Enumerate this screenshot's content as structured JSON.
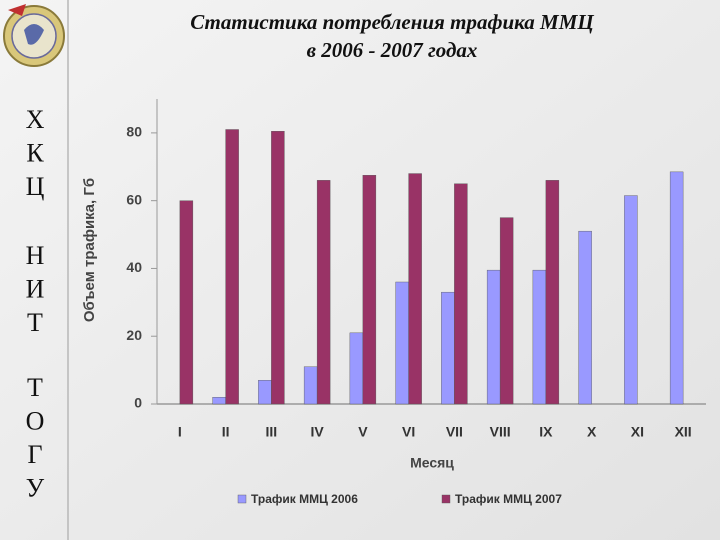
{
  "sidebar": [
    [
      "Х",
      "К",
      "Ц"
    ],
    [
      "Н",
      "И",
      "Т"
    ],
    [
      "Т",
      "О",
      "Г",
      "У"
    ]
  ],
  "chart_data": {
    "type": "bar",
    "title": "Статистика потребления трафика ММЦ",
    "subtitle": "в 2006 - 2007 годах",
    "x_label": "Месяц",
    "y_label": "Объем трафика, Гб",
    "categories": [
      "I",
      "II",
      "III",
      "IV",
      "V",
      "VI",
      "VII",
      "VIII",
      "IX",
      "X",
      "XI",
      "XII"
    ],
    "series": [
      {
        "name": "Трафик ММЦ 2006",
        "color": "#9999ff",
        "values": [
          null,
          2,
          7,
          11,
          21,
          36,
          33,
          39.5,
          39.5,
          51,
          61.5,
          68.5
        ]
      },
      {
        "name": "Трафик ММЦ 2007",
        "color": "#993366",
        "values": [
          60,
          81,
          80.5,
          66,
          67.5,
          68,
          65,
          55,
          66,
          null,
          null,
          null
        ]
      }
    ],
    "ylim": [
      0,
      90
    ],
    "yticks": [
      0,
      20,
      40,
      60,
      80
    ],
    "grid": false,
    "legend": "bottom"
  }
}
